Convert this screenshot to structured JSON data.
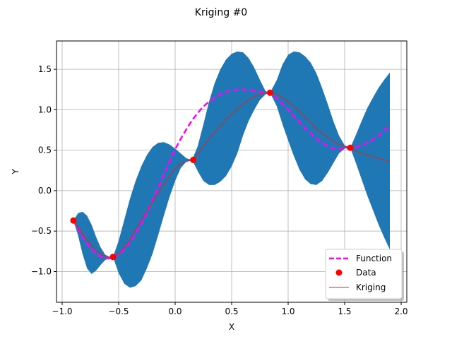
{
  "chart_data": {
    "type": "line",
    "title": "Kriging #0",
    "xlabel": "X",
    "ylabel": "Y",
    "xlim": [
      -1.05,
      2.05
    ],
    "ylim": [
      -1.38,
      1.85
    ],
    "xticks": [
      -1.0,
      -0.5,
      0.0,
      0.5,
      1.0,
      1.5,
      2.0
    ],
    "xtick_labels": [
      "−1.0",
      "−0.5",
      "0.0",
      "0.5",
      "1.0",
      "1.5",
      "2.0"
    ],
    "yticks": [
      -1.0,
      -0.5,
      0.0,
      0.5,
      1.0,
      1.5
    ],
    "ytick_labels": [
      "−1.0",
      "−0.5",
      "0.0",
      "0.5",
      "1.0",
      "1.5"
    ],
    "grid": true,
    "legend_position": "lower-right",
    "colors": {
      "band": "#1f77b4",
      "function": "#ff00ff",
      "data": "#ff0000",
      "kriging": "#d62728"
    },
    "confidence_band": {
      "x": [
        -0.9,
        -0.86,
        -0.82,
        -0.78,
        -0.74,
        -0.7,
        -0.66,
        -0.62,
        -0.58,
        -0.55,
        -0.5,
        -0.45,
        -0.4,
        -0.35,
        -0.3,
        -0.25,
        -0.2,
        -0.15,
        -0.1,
        -0.05,
        0.0,
        0.05,
        0.1,
        0.15,
        0.2,
        0.25,
        0.3,
        0.35,
        0.4,
        0.45,
        0.5,
        0.55,
        0.6,
        0.65,
        0.7,
        0.75,
        0.8,
        0.84,
        0.9,
        0.95,
        1.0,
        1.05,
        1.1,
        1.15,
        1.2,
        1.25,
        1.3,
        1.35,
        1.4,
        1.45,
        1.5,
        1.55,
        1.6,
        1.65,
        1.7,
        1.75,
        1.8,
        1.85,
        1.9
      ],
      "upper": [
        -0.37,
        -0.28,
        -0.26,
        -0.31,
        -0.42,
        -0.57,
        -0.7,
        -0.79,
        -0.82,
        -0.82,
        -0.62,
        -0.36,
        -0.1,
        0.12,
        0.3,
        0.44,
        0.54,
        0.59,
        0.6,
        0.57,
        0.52,
        0.46,
        0.4,
        0.38,
        0.55,
        0.82,
        1.1,
        1.33,
        1.5,
        1.62,
        1.69,
        1.72,
        1.71,
        1.64,
        1.52,
        1.37,
        1.23,
        1.21,
        1.37,
        1.56,
        1.68,
        1.72,
        1.71,
        1.66,
        1.58,
        1.45,
        1.27,
        1.07,
        0.86,
        0.68,
        0.56,
        0.53,
        0.69,
        0.86,
        1.02,
        1.15,
        1.27,
        1.37,
        1.46
      ],
      "lower": [
        -0.37,
        -0.55,
        -0.78,
        -0.96,
        -1.03,
        -0.99,
        -0.92,
        -0.86,
        -0.83,
        -0.82,
        -1.02,
        -1.15,
        -1.2,
        -1.18,
        -1.11,
        -0.96,
        -0.78,
        -0.55,
        -0.31,
        -0.08,
        0.12,
        0.28,
        0.36,
        0.38,
        0.24,
        0.12,
        0.07,
        0.07,
        0.11,
        0.18,
        0.3,
        0.46,
        0.68,
        0.86,
        1.0,
        1.12,
        1.19,
        1.21,
        1.04,
        0.82,
        0.62,
        0.43,
        0.26,
        0.14,
        0.08,
        0.07,
        0.12,
        0.22,
        0.34,
        0.46,
        0.52,
        0.53,
        0.34,
        0.14,
        -0.06,
        -0.24,
        -0.42,
        -0.58,
        -0.73
      ]
    },
    "series": [
      {
        "name": "Function",
        "x": [
          -0.9,
          -0.85,
          -0.8,
          -0.75,
          -0.7,
          -0.65,
          -0.6,
          -0.55,
          -0.5,
          -0.45,
          -0.4,
          -0.35,
          -0.3,
          -0.25,
          -0.2,
          -0.15,
          -0.1,
          -0.05,
          0.0,
          0.05,
          0.1,
          0.15,
          0.2,
          0.25,
          0.3,
          0.35,
          0.4,
          0.45,
          0.5,
          0.55,
          0.6,
          0.65,
          0.7,
          0.75,
          0.8,
          0.84,
          0.9,
          0.95,
          1.0,
          1.05,
          1.1,
          1.15,
          1.2,
          1.25,
          1.3,
          1.35,
          1.4,
          1.45,
          1.5,
          1.55,
          1.6,
          1.65,
          1.7,
          1.75,
          1.8,
          1.85,
          1.9
        ],
        "y": [
          -0.37,
          -0.5,
          -0.62,
          -0.71,
          -0.78,
          -0.82,
          -0.84,
          -0.83,
          -0.79,
          -0.73,
          -0.64,
          -0.53,
          -0.41,
          -0.27,
          -0.12,
          0.04,
          0.2,
          0.36,
          0.51,
          0.64,
          0.76,
          0.87,
          0.96,
          1.04,
          1.1,
          1.15,
          1.19,
          1.22,
          1.24,
          1.25,
          1.25,
          1.24,
          1.23,
          1.22,
          1.21,
          1.21,
          1.14,
          1.07,
          1.0,
          0.92,
          0.85,
          0.77,
          0.71,
          0.64,
          0.59,
          0.55,
          0.52,
          0.51,
          0.52,
          0.53,
          0.54,
          0.56,
          0.59,
          0.63,
          0.68,
          0.74,
          0.8
        ]
      },
      {
        "name": "Data",
        "x": [
          -0.9,
          -0.55,
          0.16,
          0.84,
          1.55
        ],
        "y": [
          -0.37,
          -0.82,
          0.38,
          1.21,
          0.53
        ]
      },
      {
        "name": "Kriging",
        "x": [
          -0.9,
          -0.85,
          -0.8,
          -0.75,
          -0.7,
          -0.65,
          -0.6,
          -0.55,
          -0.5,
          -0.45,
          -0.4,
          -0.35,
          -0.3,
          -0.25,
          -0.2,
          -0.15,
          -0.1,
          -0.05,
          0.0,
          0.05,
          0.1,
          0.16,
          0.2,
          0.25,
          0.3,
          0.35,
          0.4,
          0.45,
          0.5,
          0.55,
          0.6,
          0.65,
          0.7,
          0.75,
          0.8,
          0.84,
          0.9,
          0.95,
          1.0,
          1.05,
          1.1,
          1.15,
          1.2,
          1.25,
          1.3,
          1.35,
          1.4,
          1.45,
          1.5,
          1.55,
          1.6,
          1.65,
          1.7,
          1.75,
          1.8,
          1.85,
          1.9
        ],
        "y": [
          -0.37,
          -0.47,
          -0.57,
          -0.66,
          -0.74,
          -0.79,
          -0.82,
          -0.82,
          -0.78,
          -0.7,
          -0.6,
          -0.48,
          -0.37,
          -0.25,
          -0.14,
          -0.03,
          0.08,
          0.18,
          0.27,
          0.33,
          0.36,
          0.38,
          0.45,
          0.55,
          0.64,
          0.72,
          0.8,
          0.88,
          0.95,
          1.01,
          1.07,
          1.12,
          1.16,
          1.19,
          1.21,
          1.21,
          1.19,
          1.15,
          1.1,
          1.04,
          0.98,
          0.91,
          0.84,
          0.77,
          0.71,
          0.66,
          0.61,
          0.57,
          0.55,
          0.53,
          0.49,
          0.46,
          0.44,
          0.42,
          0.4,
          0.38,
          0.36
        ]
      }
    ]
  }
}
